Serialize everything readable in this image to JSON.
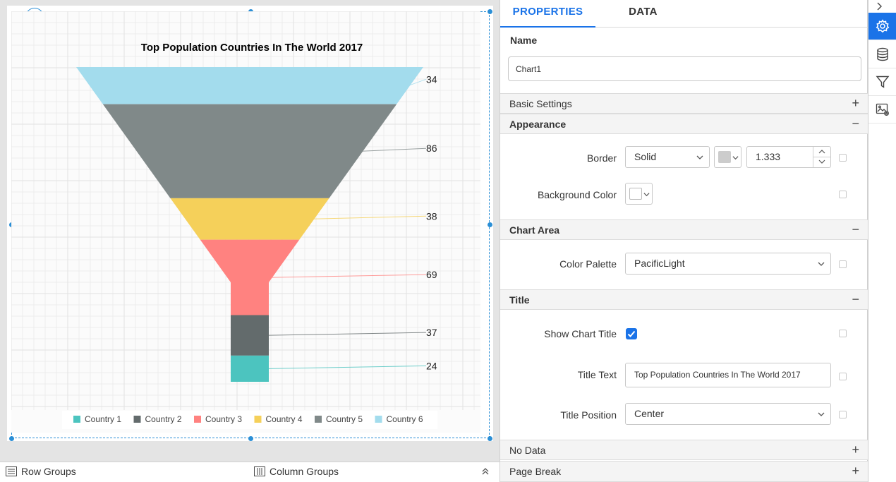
{
  "chart_data": {
    "type": "funnel",
    "title": "Top Population Countries In The World 2017",
    "categories": [
      "Country 1",
      "Country 2",
      "Country 3",
      "Country 4",
      "Country 5",
      "Country 6"
    ],
    "values": [
      24,
      37,
      69,
      38,
      86,
      34
    ],
    "colors": [
      "#4cc4bf",
      "#636b6c",
      "#ff8280",
      "#f5d05a",
      "#808989",
      "#a3dced"
    ],
    "data_labels": [
      "24",
      "37",
      "69",
      "38",
      "86",
      "34"
    ],
    "legend": {
      "position": "bottom",
      "entries": [
        "Country 1",
        "Country 2",
        "Country 3",
        "Country 4",
        "Country 5",
        "Country 6"
      ]
    },
    "grid": true
  },
  "bottom_bar": {
    "row_groups": "Row Groups",
    "column_groups": "Column Groups"
  },
  "panel": {
    "tabs": [
      "PROPERTIES",
      "DATA"
    ],
    "name_label": "Name",
    "name_value": "Chart1",
    "sections": {
      "basic_settings": "Basic Settings",
      "appearance": "Appearance",
      "chart_area": "Chart Area",
      "title": "Title",
      "no_data": "No Data",
      "page_break": "Page Break"
    },
    "appearance": {
      "border_label": "Border",
      "border_style": "Solid",
      "border_color": "#cccccc",
      "border_width": "1.333",
      "background_label": "Background Color",
      "background_color": "#ffffff"
    },
    "chart_area": {
      "palette_label": "Color Palette",
      "palette_value": "PacificLight"
    },
    "title": {
      "show_label": "Show Chart Title",
      "show_checked": true,
      "text_label": "Title Text",
      "text_value": "Top Population Countries In The World 2017",
      "position_label": "Title Position",
      "position_value": "Center"
    }
  },
  "toolbar": {
    "icons": [
      "collapse-chevron-icon",
      "settings-gear-icon",
      "database-icon",
      "filter-icon",
      "image-settings-icon"
    ]
  }
}
